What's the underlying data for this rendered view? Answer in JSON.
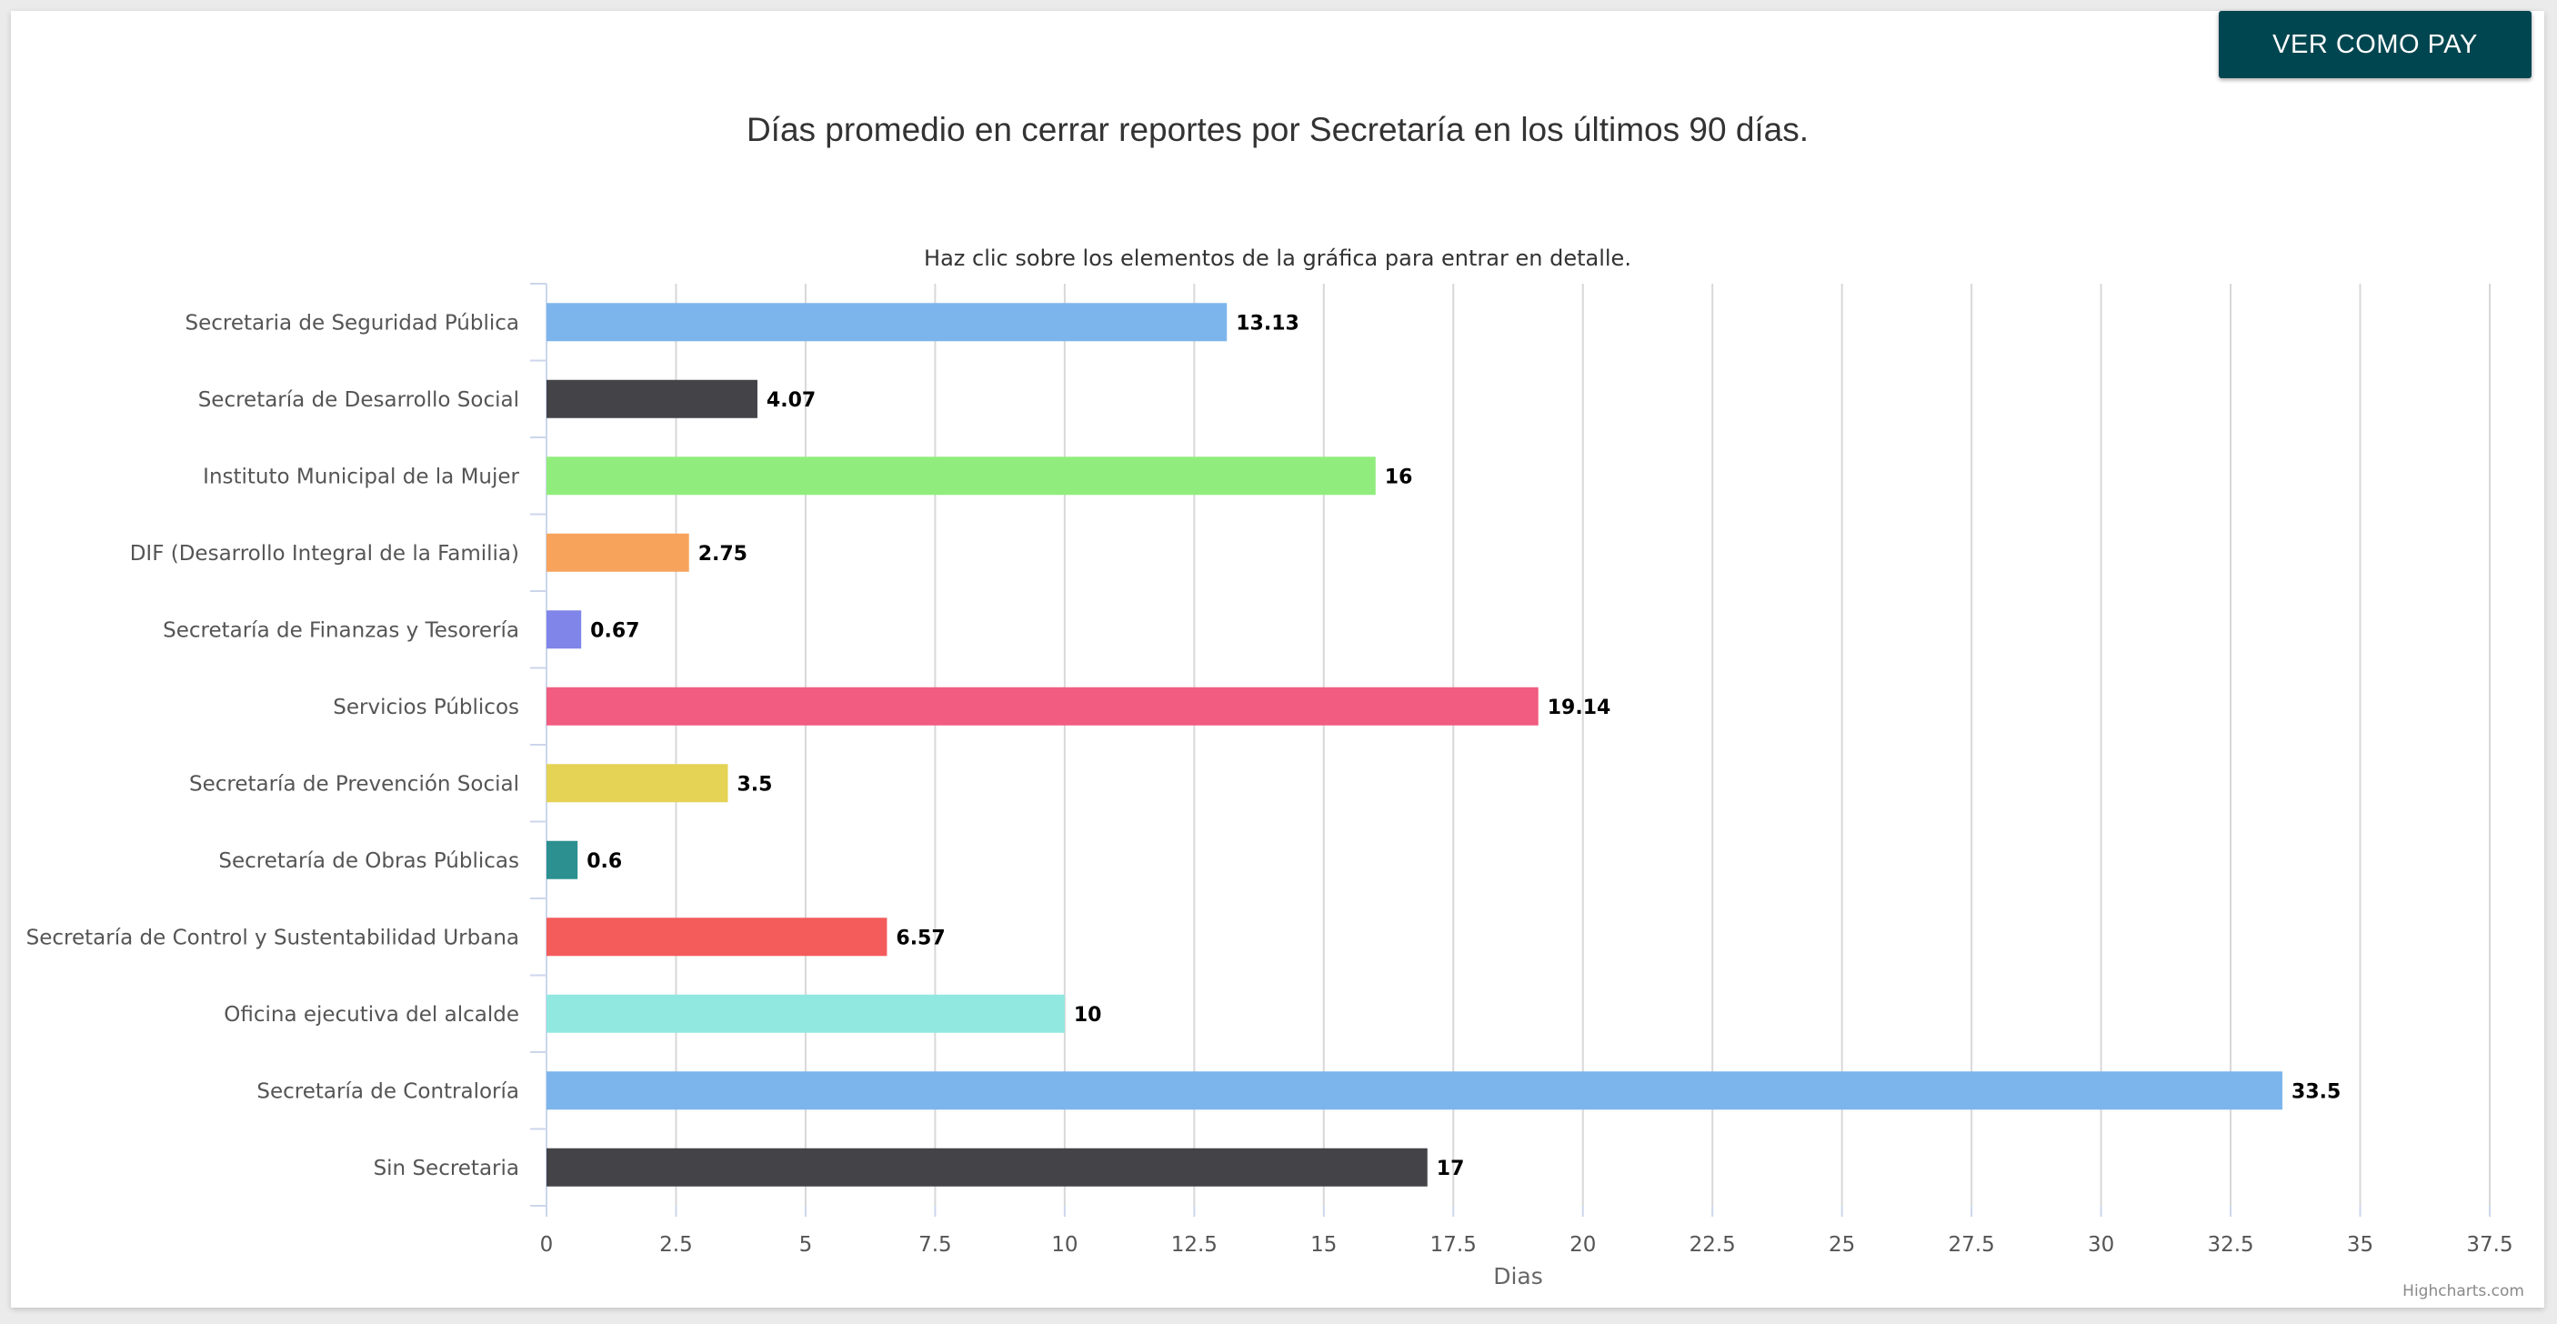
{
  "button": {
    "label": "VER COMO PAY"
  },
  "credit": "Highcharts.com",
  "chart_data": {
    "type": "bar",
    "orientation": "horizontal",
    "title": "Días promedio en cerrar reportes por Secretaría en los últimos 90 días.",
    "subtitle": "Haz clic sobre los elementos de la gráfica para entrar en detalle.",
    "xlabel": "",
    "ylabel": "Dias",
    "categories": [
      "Secretaria de Seguridad Pública",
      "Secretaría de Desarrollo Social",
      "Instituto Municipal de la Mujer",
      "DIF (Desarrollo Integral de la Familia)",
      "Secretaría de Finanzas y Tesorería",
      "Servicios Públicos",
      "Secretaría de Prevención Social",
      "Secretaría de Obras Públicas",
      "Secretaría de Control y Sustentabilidad Urbana",
      "Oficina ejecutiva del alcalde",
      "Secretaría de Contraloría",
      "Sin Secretaria"
    ],
    "values": [
      13.13,
      4.07,
      16,
      2.75,
      0.67,
      19.14,
      3.5,
      0.6,
      6.57,
      10,
      33.5,
      17
    ],
    "colors": [
      "#7cb5ec",
      "#434348",
      "#90ed7d",
      "#f7a35c",
      "#8085e9",
      "#f15c80",
      "#e4d354",
      "#2b908f",
      "#f45b5b",
      "#91e8e1",
      "#7cb5ec",
      "#434348"
    ],
    "ylim": [
      0,
      37.5
    ],
    "tick_step": 2.5,
    "grid": true,
    "data_labels": true,
    "legend": false
  }
}
